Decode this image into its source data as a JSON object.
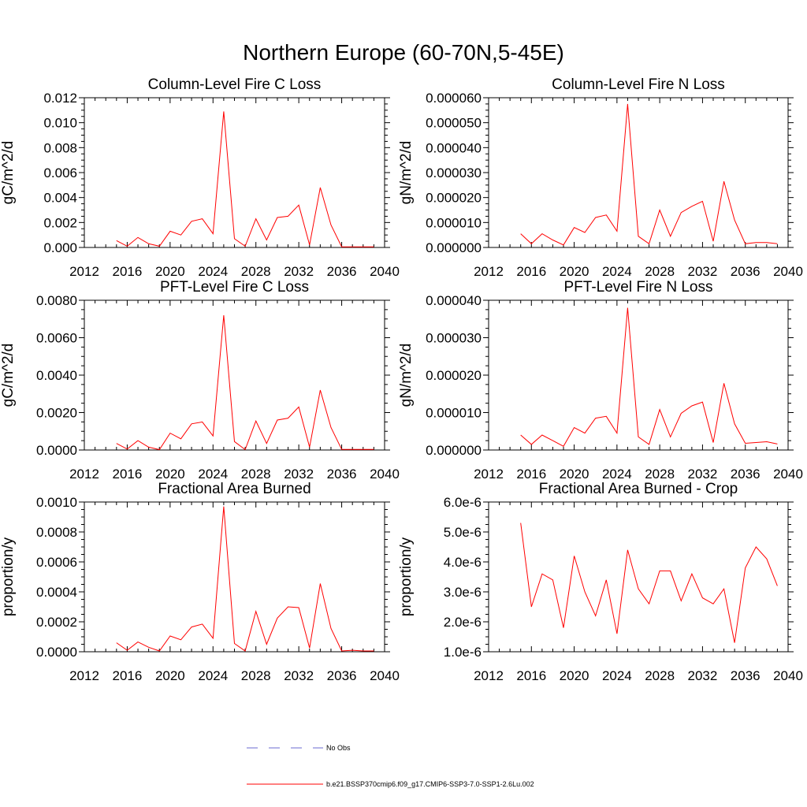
{
  "figure_title": "Northern Europe (60-70N,5-45E)",
  "legend": {
    "items": [
      {
        "label": "No Obs",
        "color": "#6a6ad0",
        "dash": true
      },
      {
        "label": "b.e21.BSSP370cmip6.f09_g17.CMIP6-SSP3-7.0-SSP1-2.6Lu.002",
        "color": "#ff0000",
        "dash": false
      }
    ]
  },
  "chart_data": [
    {
      "type": "line",
      "title": "Column-Level Fire C Loss",
      "ylabel": "gC/m^2/d",
      "xlabel": "",
      "xlim": [
        2012,
        2040
      ],
      "ylim": [
        0,
        0.012
      ],
      "xticks": [
        "2012",
        "2016",
        "2020",
        "2024",
        "2028",
        "2032",
        "2036",
        "2040"
      ],
      "yticks": [
        "0.000",
        "0.002",
        "0.004",
        "0.006",
        "0.008",
        "0.010",
        "0.012"
      ],
      "series": [
        {
          "color": "#ff0000",
          "x": [
            2015,
            2016,
            2017,
            2018,
            2019,
            2020,
            2021,
            2022,
            2023,
            2024,
            2025,
            2026,
            2027,
            2028,
            2029,
            2030,
            2031,
            2032,
            2033,
            2034,
            2035,
            2036,
            2037,
            2038,
            2039
          ],
          "y": [
            0.00055,
            0.0001,
            0.0008,
            0.0003,
            0.0001,
            0.0013,
            0.001,
            0.0021,
            0.0023,
            0.0011,
            0.0109,
            0.0007,
            0.0001,
            0.0023,
            0.0006,
            0.0024,
            0.0025,
            0.0034,
            0.0002,
            0.0048,
            0.0018,
            5e-05,
            5e-05,
            5e-05,
            5e-05
          ]
        }
      ]
    },
    {
      "type": "line",
      "title": "Column-Level Fire N Loss",
      "ylabel": "gN/m^2/d",
      "xlabel": "",
      "xlim": [
        2012,
        2040
      ],
      "ylim": [
        0,
        6e-05
      ],
      "xticks": [
        "2012",
        "2016",
        "2020",
        "2024",
        "2028",
        "2032",
        "2036",
        "2040"
      ],
      "yticks": [
        "0.000000",
        "0.000010",
        "0.000020",
        "0.000030",
        "0.000040",
        "0.000050",
        "0.000060"
      ],
      "series": [
        {
          "color": "#ff0000",
          "x": [
            2015,
            2016,
            2017,
            2018,
            2019,
            2020,
            2021,
            2022,
            2023,
            2024,
            2025,
            2026,
            2027,
            2028,
            2029,
            2030,
            2031,
            2032,
            2033,
            2034,
            2035,
            2036,
            2037,
            2038,
            2039
          ],
          "y": [
            5.5e-06,
            1.5e-06,
            5.5e-06,
            3e-06,
            1e-06,
            8e-06,
            6e-06,
            1.2e-05,
            1.3e-05,
            6.5e-06,
            5.75e-05,
            4.5e-06,
            1.5e-06,
            1.5e-05,
            4.5e-06,
            1.4e-05,
            1.65e-05,
            1.85e-05,
            2.5e-06,
            2.65e-05,
            1.1e-05,
            1.5e-06,
            2e-06,
            2e-06,
            1.5e-06
          ]
        }
      ]
    },
    {
      "type": "line",
      "title": "PFT-Level Fire C Loss",
      "ylabel": "gC/m^2/d",
      "xlabel": "",
      "xlim": [
        2012,
        2040
      ],
      "ylim": [
        0,
        0.008
      ],
      "xticks": [
        "2012",
        "2016",
        "2020",
        "2024",
        "2028",
        "2032",
        "2036",
        "2040"
      ],
      "yticks": [
        "0.0000",
        "0.0020",
        "0.0040",
        "0.0060",
        "0.0080"
      ],
      "series": [
        {
          "color": "#ff0000",
          "x": [
            2015,
            2016,
            2017,
            2018,
            2019,
            2020,
            2021,
            2022,
            2023,
            2024,
            2025,
            2026,
            2027,
            2028,
            2029,
            2030,
            2031,
            2032,
            2033,
            2034,
            2035,
            2036,
            2037,
            2038,
            2039
          ],
          "y": [
            0.00035,
            5e-05,
            0.0005,
            0.00015,
            2e-05,
            0.0009,
            0.0006,
            0.0014,
            0.0015,
            0.00075,
            0.0072,
            0.00045,
            2e-05,
            0.00155,
            0.00035,
            0.0016,
            0.0017,
            0.0023,
            0.00015,
            0.0032,
            0.0012,
            3e-05,
            3e-05,
            3e-05,
            3e-05
          ]
        }
      ]
    },
    {
      "type": "line",
      "title": "PFT-Level Fire N Loss",
      "ylabel": "gN/m^2/d",
      "xlabel": "",
      "xlim": [
        2012,
        2040
      ],
      "ylim": [
        0,
        4e-05
      ],
      "xticks": [
        "2012",
        "2016",
        "2020",
        "2024",
        "2028",
        "2032",
        "2036",
        "2040"
      ],
      "yticks": [
        "0.000000",
        "0.000010",
        "0.000020",
        "0.000030",
        "0.000040"
      ],
      "series": [
        {
          "color": "#ff0000",
          "x": [
            2015,
            2016,
            2017,
            2018,
            2019,
            2020,
            2021,
            2022,
            2023,
            2024,
            2025,
            2026,
            2027,
            2028,
            2029,
            2030,
            2031,
            2032,
            2033,
            2034,
            2035,
            2036,
            2037,
            2038,
            2039
          ],
          "y": [
            4e-06,
            1.5e-06,
            4e-06,
            2.5e-06,
            1e-06,
            6e-06,
            4.5e-06,
            8.5e-06,
            9e-06,
            4.5e-06,
            3.8e-05,
            3.5e-06,
            1.5e-06,
            1.08e-05,
            3.5e-06,
            9.8e-06,
            1.18e-05,
            1.28e-05,
            2e-06,
            1.78e-05,
            7e-06,
            1.8e-06,
            2e-06,
            2.2e-06,
            1.6e-06
          ]
        }
      ]
    },
    {
      "type": "line",
      "title": "Fractional Area Burned",
      "ylabel": "proportion/y",
      "xlabel": "",
      "xlim": [
        2012,
        2040
      ],
      "ylim": [
        0,
        0.001
      ],
      "xticks": [
        "2012",
        "2016",
        "2020",
        "2024",
        "2028",
        "2032",
        "2036",
        "2040"
      ],
      "yticks": [
        "0.0000",
        "0.0002",
        "0.0004",
        "0.0006",
        "0.0008",
        "0.0010"
      ],
      "series": [
        {
          "color": "#ff0000",
          "x": [
            2015,
            2016,
            2017,
            2018,
            2019,
            2020,
            2021,
            2022,
            2023,
            2024,
            2025,
            2026,
            2027,
            2028,
            2029,
            2030,
            2031,
            2032,
            2033,
            2034,
            2035,
            2036,
            2037,
            2038,
            2039
          ],
          "y": [
            6e-05,
            1e-05,
            6.5e-05,
            3e-05,
            5e-06,
            0.000105,
            8e-05,
            0.000165,
            0.000185,
            9e-05,
            0.00097,
            5.5e-05,
            5e-06,
            0.00027,
            5e-05,
            0.000225,
            0.0003,
            0.000295,
            2.5e-05,
            0.000455,
            0.000155,
            5e-06,
            1e-05,
            5e-06,
            5e-06
          ]
        }
      ]
    },
    {
      "type": "line",
      "title": "Fractional Area Burned - Crop",
      "ylabel": "proportion/y",
      "xlabel": "",
      "xlim": [
        2012,
        2040
      ],
      "ylim": [
        1e-06,
        6e-06
      ],
      "xticks": [
        "2012",
        "2016",
        "2020",
        "2024",
        "2028",
        "2032",
        "2036",
        "2040"
      ],
      "yticks": [
        "1.0e-6",
        "2.0e-6",
        "3.0e-6",
        "4.0e-6",
        "5.0e-6",
        "6.0e-6"
      ],
      "series": [
        {
          "color": "#ff0000",
          "x": [
            2015,
            2016,
            2017,
            2018,
            2019,
            2020,
            2021,
            2022,
            2023,
            2024,
            2025,
            2026,
            2027,
            2028,
            2029,
            2030,
            2031,
            2032,
            2033,
            2034,
            2035,
            2036,
            2037,
            2038,
            2039
          ],
          "y": [
            5.3e-06,
            2.5e-06,
            3.6e-06,
            3.4e-06,
            1.8e-06,
            4.2e-06,
            3e-06,
            2.2e-06,
            3.4e-06,
            1.6e-06,
            4.4e-06,
            3.1e-06,
            2.6e-06,
            3.7e-06,
            3.7e-06,
            2.7e-06,
            3.6e-06,
            2.8e-06,
            2.6e-06,
            3.1e-06,
            1.3e-06,
            3.8e-06,
            4.5e-06,
            4.1e-06,
            3.2e-06
          ]
        }
      ]
    }
  ]
}
